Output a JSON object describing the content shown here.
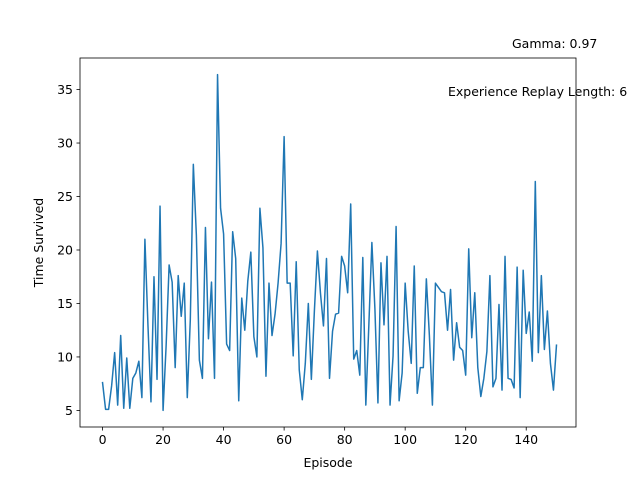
{
  "chart_data": {
    "type": "line",
    "title": "",
    "xlabel": "Episode",
    "ylabel": "Time Survived",
    "xlim": [
      -7.45,
      156.45
    ],
    "ylim": [
      3.45,
      37.95
    ],
    "xticks": [
      0,
      20,
      40,
      60,
      80,
      100,
      120,
      140
    ],
    "yticks": [
      5,
      10,
      15,
      20,
      25,
      30,
      35
    ],
    "grid": false,
    "annotations": [
      {
        "text": "Gamma: 0.97"
      },
      {
        "text": "Experience Replay Length: 6"
      }
    ],
    "series": [
      {
        "color": "#1f77b4",
        "values": [
          7.6,
          5.1,
          5.1,
          7.3,
          10.4,
          5.5,
          12.0,
          5.2,
          9.9,
          5.2,
          8.0,
          8.5,
          9.6,
          6.2,
          21.0,
          13.0,
          5.8,
          17.5,
          7.9,
          24.1,
          5.0,
          11.0,
          18.6,
          17.0,
          9.0,
          17.6,
          13.8,
          16.9,
          6.2,
          13.5,
          28.0,
          21.4,
          9.7,
          8.0,
          22.1,
          11.7,
          17.0,
          8.0,
          36.4,
          23.9,
          21.5,
          11.2,
          10.6,
          21.7,
          19.2,
          5.9,
          15.5,
          12.5,
          17.1,
          19.8,
          11.9,
          10.0,
          23.9,
          20.2,
          8.2,
          16.9,
          12.0,
          14.0,
          16.9,
          20.6,
          30.6,
          16.9,
          16.9,
          10.1,
          18.9,
          8.8,
          6.0,
          9.4,
          15.0,
          7.9,
          14.3,
          19.9,
          16.0,
          12.9,
          19.2,
          8.0,
          12.4,
          14.0,
          14.1,
          19.4,
          18.5,
          16.0,
          24.3,
          9.8,
          10.6,
          8.3,
          19.3,
          5.5,
          13.0,
          20.7,
          14.5,
          5.7,
          18.8,
          13.0,
          19.4,
          5.5,
          10.1,
          22.2,
          5.9,
          8.5,
          16.9,
          12.4,
          9.4,
          18.5,
          6.6,
          9.0,
          9.0,
          17.3,
          12.0,
          5.5,
          16.9,
          16.5,
          16.1,
          16.0,
          12.5,
          16.3,
          9.7,
          13.2,
          10.9,
          10.6,
          8.3,
          20.1,
          11.8,
          16.0,
          9.0,
          6.3,
          8.0,
          10.5,
          17.6,
          7.2,
          8.0,
          14.9,
          6.9,
          19.4,
          8.0,
          7.9,
          7.1,
          18.4,
          6.2,
          18.1,
          12.2,
          14.2,
          9.6,
          26.4,
          10.4,
          17.6,
          10.7,
          14.3,
          9.4,
          6.9,
          11.1
        ]
      }
    ]
  }
}
